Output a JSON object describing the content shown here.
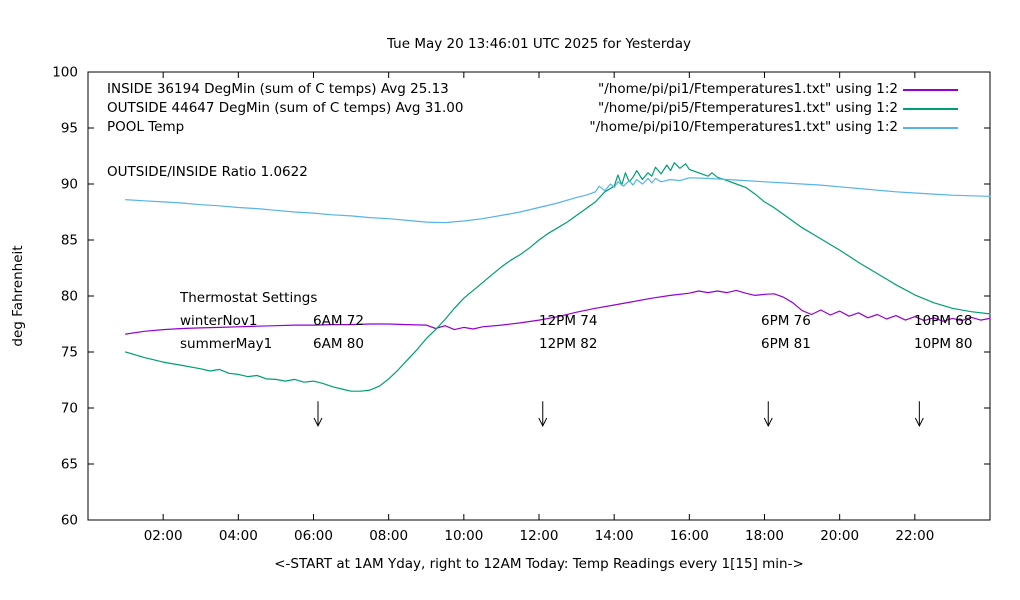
{
  "legend": {
    "rows": [
      {
        "label": "INSIDE 36194 DegMin (sum of C temps) Avg 25.13",
        "file": "\"/home/pi/pi1/Ftemperatures1.txt\" using 1:2",
        "color": "#9400d3"
      },
      {
        "label": "OUTSIDE 44647 DegMin (sum of C temps) Avg 31.00",
        "file": "\"/home/pi/pi5/Ftemperatures1.txt\" using 1:2",
        "color": "#009e73"
      },
      {
        "label": "POOL Temp",
        "file": "\"/home/pi/pi10/Ftemperatures1.txt\" using 1:2",
        "color": "#56b4e9"
      }
    ],
    "ratio_text": "OUTSIDE/INSIDE Ratio 1.0622"
  },
  "thermostat": {
    "title": "Thermostat Settings",
    "rows": [
      [
        "winterNov1",
        "6AM 72",
        "12PM 74",
        "6PM 76",
        "10PM 68"
      ],
      [
        "summerMay1",
        "6AM 80",
        "12PM 82",
        "6PM 81",
        "10PM 80"
      ]
    ]
  },
  "chart_data": {
    "type": "line",
    "title": "Tue May 20 13:46:01 UTC 2025 for Yesterday",
    "xlabel": "<-START at 1AM Yday, right to 12AM Today:  Temp Readings every 1[15] min->",
    "ylabel": "deg Fahrenheit",
    "xlim": [
      0,
      24
    ],
    "ylim": [
      60,
      100
    ],
    "grid": false,
    "legend_position": "top",
    "x_ticks": [
      {
        "v": 2,
        "label": "02:00"
      },
      {
        "v": 4,
        "label": "04:00"
      },
      {
        "v": 6,
        "label": "06:00"
      },
      {
        "v": 8,
        "label": "08:00"
      },
      {
        "v": 10,
        "label": "10:00"
      },
      {
        "v": 12,
        "label": "12:00"
      },
      {
        "v": 14,
        "label": "14:00"
      },
      {
        "v": 16,
        "label": "16:00"
      },
      {
        "v": 18,
        "label": "18:00"
      },
      {
        "v": 20,
        "label": "20:00"
      },
      {
        "v": 22,
        "label": "22:00"
      }
    ],
    "y_ticks": [
      {
        "v": 60,
        "label": "60"
      },
      {
        "v": 65,
        "label": "65"
      },
      {
        "v": 70,
        "label": "70"
      },
      {
        "v": 75,
        "label": "75"
      },
      {
        "v": 80,
        "label": "80"
      },
      {
        "v": 85,
        "label": "85"
      },
      {
        "v": 90,
        "label": "90"
      },
      {
        "v": 95,
        "label": "95"
      },
      {
        "v": 100,
        "label": "100"
      }
    ],
    "arrows": [
      {
        "x": 6.12,
        "y_top": 70.6,
        "y_tip": 68.4
      },
      {
        "x": 12.1,
        "y_top": 70.6,
        "y_tip": 68.4
      },
      {
        "x": 18.1,
        "y_top": 70.6,
        "y_tip": 68.4
      },
      {
        "x": 22.12,
        "y_top": 70.6,
        "y_tip": 68.4
      }
    ],
    "series": [
      {
        "name": "INSIDE",
        "color": "#9400d3",
        "points": [
          [
            1,
            76.6
          ],
          [
            1.5,
            76.85
          ],
          [
            2,
            77.0
          ],
          [
            2.5,
            77.1
          ],
          [
            3,
            77.15
          ],
          [
            3.5,
            77.2
          ],
          [
            4,
            77.25
          ],
          [
            4.5,
            77.3
          ],
          [
            5,
            77.35
          ],
          [
            5.5,
            77.4
          ],
          [
            6,
            77.4
          ],
          [
            6.5,
            77.45
          ],
          [
            7,
            77.45
          ],
          [
            7.5,
            77.5
          ],
          [
            8,
            77.5
          ],
          [
            8.5,
            77.45
          ],
          [
            9,
            77.4
          ],
          [
            9.25,
            77.1
          ],
          [
            9.5,
            77.35
          ],
          [
            9.75,
            77.0
          ],
          [
            10,
            77.2
          ],
          [
            10.25,
            77.05
          ],
          [
            10.5,
            77.25
          ],
          [
            11,
            77.4
          ],
          [
            11.5,
            77.6
          ],
          [
            12,
            77.85
          ],
          [
            12.5,
            78.15
          ],
          [
            13,
            78.55
          ],
          [
            13.5,
            78.9
          ],
          [
            14,
            79.2
          ],
          [
            14.5,
            79.5
          ],
          [
            15,
            79.8
          ],
          [
            15.5,
            80.05
          ],
          [
            16,
            80.25
          ],
          [
            16.25,
            80.45
          ],
          [
            16.5,
            80.3
          ],
          [
            16.75,
            80.45
          ],
          [
            17,
            80.3
          ],
          [
            17.25,
            80.5
          ],
          [
            17.5,
            80.25
          ],
          [
            17.75,
            80.05
          ],
          [
            18,
            80.15
          ],
          [
            18.25,
            80.2
          ],
          [
            18.5,
            79.9
          ],
          [
            18.75,
            79.4
          ],
          [
            19,
            78.7
          ],
          [
            19.25,
            78.35
          ],
          [
            19.5,
            78.75
          ],
          [
            19.75,
            78.3
          ],
          [
            20,
            78.65
          ],
          [
            20.25,
            78.2
          ],
          [
            20.5,
            78.5
          ],
          [
            20.75,
            78.05
          ],
          [
            21,
            78.35
          ],
          [
            21.25,
            77.95
          ],
          [
            21.5,
            78.25
          ],
          [
            21.75,
            77.85
          ],
          [
            22,
            78.15
          ],
          [
            22.25,
            77.8
          ],
          [
            22.5,
            78.05
          ],
          [
            22.75,
            77.75
          ],
          [
            23,
            78.0
          ],
          [
            23.25,
            77.8
          ],
          [
            23.5,
            78.1
          ],
          [
            23.75,
            77.85
          ],
          [
            24,
            78.0
          ]
        ]
      },
      {
        "name": "OUTSIDE",
        "color": "#009e73",
        "points": [
          [
            1,
            75.0
          ],
          [
            1.5,
            74.5
          ],
          [
            2,
            74.1
          ],
          [
            2.5,
            73.8
          ],
          [
            3,
            73.5
          ],
          [
            3.25,
            73.3
          ],
          [
            3.5,
            73.45
          ],
          [
            3.75,
            73.1
          ],
          [
            4,
            73.0
          ],
          [
            4.25,
            72.8
          ],
          [
            4.5,
            72.9
          ],
          [
            4.75,
            72.6
          ],
          [
            5,
            72.55
          ],
          [
            5.25,
            72.4
          ],
          [
            5.5,
            72.55
          ],
          [
            5.75,
            72.3
          ],
          [
            6,
            72.4
          ],
          [
            6.25,
            72.2
          ],
          [
            6.5,
            71.9
          ],
          [
            6.75,
            71.7
          ],
          [
            7,
            71.5
          ],
          [
            7.25,
            71.5
          ],
          [
            7.5,
            71.6
          ],
          [
            7.75,
            71.95
          ],
          [
            8,
            72.6
          ],
          [
            8.25,
            73.4
          ],
          [
            8.5,
            74.3
          ],
          [
            8.75,
            75.2
          ],
          [
            9,
            76.2
          ],
          [
            9.25,
            77.0
          ],
          [
            9.5,
            77.9
          ],
          [
            9.75,
            78.9
          ],
          [
            10,
            79.8
          ],
          [
            10.25,
            80.5
          ],
          [
            10.5,
            81.2
          ],
          [
            10.75,
            81.9
          ],
          [
            11,
            82.6
          ],
          [
            11.25,
            83.2
          ],
          [
            11.5,
            83.7
          ],
          [
            11.75,
            84.3
          ],
          [
            12,
            85.0
          ],
          [
            12.25,
            85.6
          ],
          [
            12.5,
            86.1
          ],
          [
            12.75,
            86.6
          ],
          [
            13,
            87.2
          ],
          [
            13.25,
            87.8
          ],
          [
            13.5,
            88.4
          ],
          [
            13.75,
            89.3
          ],
          [
            14,
            89.8
          ],
          [
            14.1,
            90.8
          ],
          [
            14.2,
            89.9
          ],
          [
            14.3,
            91.0
          ],
          [
            14.4,
            90.2
          ],
          [
            14.5,
            90.6
          ],
          [
            14.6,
            91.2
          ],
          [
            14.75,
            90.4
          ],
          [
            14.9,
            91.0
          ],
          [
            15,
            90.7
          ],
          [
            15.1,
            91.5
          ],
          [
            15.25,
            90.9
          ],
          [
            15.4,
            91.7
          ],
          [
            15.5,
            91.2
          ],
          [
            15.6,
            91.9
          ],
          [
            15.75,
            91.4
          ],
          [
            15.9,
            91.8
          ],
          [
            16,
            91.3
          ],
          [
            16.25,
            91.0
          ],
          [
            16.5,
            90.7
          ],
          [
            16.6,
            91.0
          ],
          [
            16.75,
            90.6
          ],
          [
            17,
            90.3
          ],
          [
            17.25,
            90.0
          ],
          [
            17.5,
            89.7
          ],
          [
            17.75,
            89.1
          ],
          [
            18,
            88.4
          ],
          [
            18.25,
            87.9
          ],
          [
            18.5,
            87.3
          ],
          [
            18.75,
            86.7
          ],
          [
            19,
            86.1
          ],
          [
            19.5,
            85.1
          ],
          [
            20,
            84.1
          ],
          [
            20.5,
            83.0
          ],
          [
            21,
            82.0
          ],
          [
            21.5,
            81.0
          ],
          [
            22,
            80.1
          ],
          [
            22.5,
            79.4
          ],
          [
            23,
            78.9
          ],
          [
            23.5,
            78.6
          ],
          [
            24,
            78.4
          ]
        ]
      },
      {
        "name": "POOL",
        "color": "#56b4e9",
        "points": [
          [
            1,
            88.6
          ],
          [
            1.5,
            88.5
          ],
          [
            2,
            88.4
          ],
          [
            2.5,
            88.3
          ],
          [
            3,
            88.15
          ],
          [
            3.5,
            88.05
          ],
          [
            4,
            87.9
          ],
          [
            4.5,
            87.8
          ],
          [
            5,
            87.65
          ],
          [
            5.5,
            87.5
          ],
          [
            6,
            87.4
          ],
          [
            6.5,
            87.25
          ],
          [
            7,
            87.15
          ],
          [
            7.5,
            87.0
          ],
          [
            8,
            86.9
          ],
          [
            8.5,
            86.75
          ],
          [
            9,
            86.6
          ],
          [
            9.5,
            86.55
          ],
          [
            10,
            86.7
          ],
          [
            10.5,
            86.9
          ],
          [
            11,
            87.2
          ],
          [
            11.5,
            87.5
          ],
          [
            12,
            87.9
          ],
          [
            12.5,
            88.3
          ],
          [
            13,
            88.8
          ],
          [
            13.25,
            89.0
          ],
          [
            13.5,
            89.3
          ],
          [
            13.6,
            89.8
          ],
          [
            13.75,
            89.4
          ],
          [
            13.9,
            90.0
          ],
          [
            14,
            89.7
          ],
          [
            14.1,
            90.2
          ],
          [
            14.25,
            89.8
          ],
          [
            14.4,
            90.3
          ],
          [
            14.5,
            89.9
          ],
          [
            14.6,
            90.4
          ],
          [
            14.75,
            90.0
          ],
          [
            14.9,
            90.5
          ],
          [
            15,
            90.1
          ],
          [
            15.1,
            90.5
          ],
          [
            15.25,
            90.2
          ],
          [
            15.5,
            90.4
          ],
          [
            15.75,
            90.3
          ],
          [
            16,
            90.55
          ],
          [
            16.5,
            90.5
          ],
          [
            17,
            90.4
          ],
          [
            17.5,
            90.3
          ],
          [
            18,
            90.2
          ],
          [
            18.5,
            90.1
          ],
          [
            19,
            90.0
          ],
          [
            19.5,
            89.9
          ],
          [
            20,
            89.75
          ],
          [
            20.5,
            89.6
          ],
          [
            21,
            89.45
          ],
          [
            21.5,
            89.3
          ],
          [
            22,
            89.2
          ],
          [
            22.5,
            89.1
          ],
          [
            23,
            89.0
          ],
          [
            23.5,
            88.95
          ],
          [
            24,
            88.9
          ]
        ]
      }
    ]
  }
}
